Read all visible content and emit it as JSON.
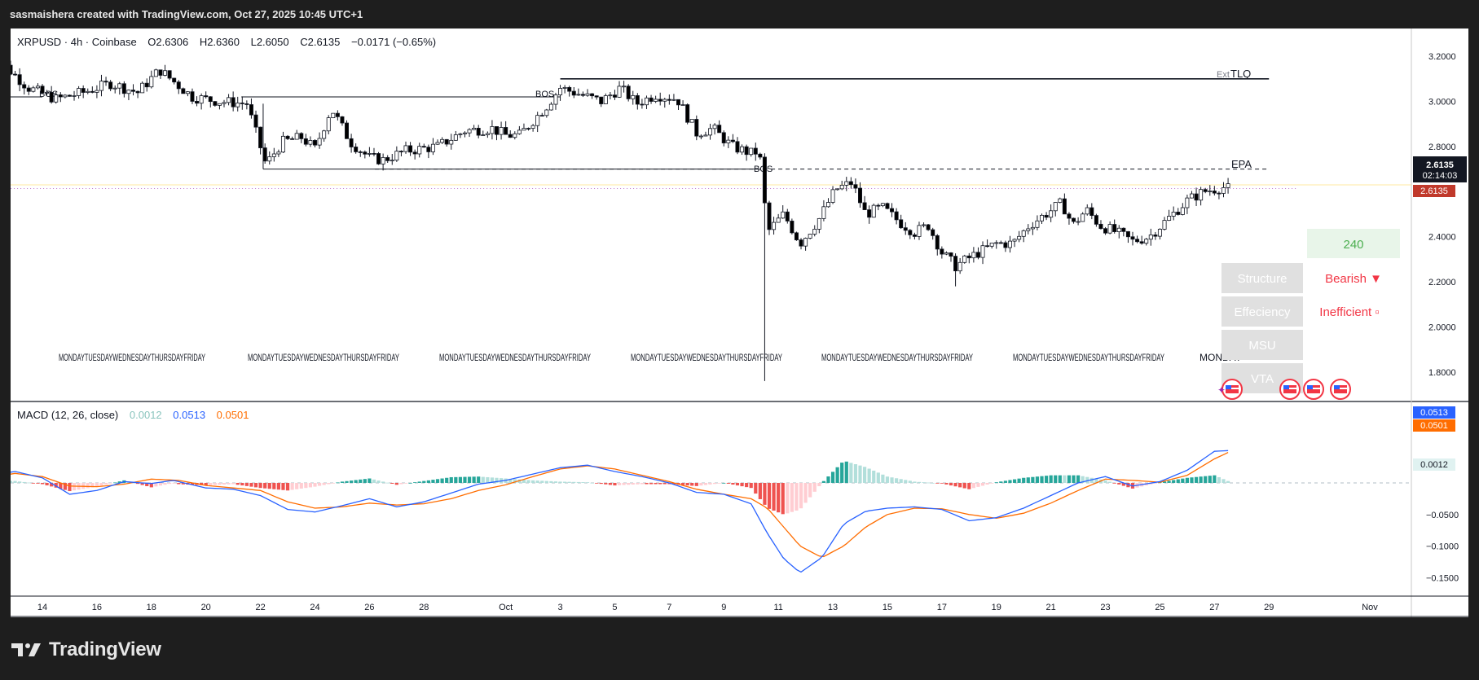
{
  "header": {
    "attribution": "sasmaishera created with TradingView.com, Oct 27, 2025 10:45 UTC+1"
  },
  "brand": {
    "name": "TradingView"
  },
  "colors": {
    "up": "#ffffff",
    "down": "#000000",
    "macd": "#2962ff",
    "signal": "#ff6d00",
    "hist_pos_strong": "#26a69a",
    "hist_pos_weak": "#b2dfdb",
    "hist_neg_strong": "#ef5350",
    "hist_neg_weak": "#ffcdd2",
    "bearish": "#f23645",
    "green": "#4caf50",
    "panel_bg": "#e0e0e0",
    "panel_text": "#ffffff"
  },
  "legend": {
    "symbol": "XRPUSD · 4h · Coinbase",
    "o_label": "O",
    "o_value": "2.6306",
    "h_label": "H",
    "h_value": "2.6360",
    "l_label": "L",
    "l_value": "2.6050",
    "c_label": "C",
    "c_value": "2.6135",
    "change": "−0.0171 (−0.65%)"
  },
  "macd_legend": {
    "title": "MACD (12, 26, close)",
    "hist": "0.0012",
    "macd": "0.0513",
    "signal": "0.0501"
  },
  "annotations": {
    "bos": "BOS",
    "tlq": "TLQ",
    "ext": "Ext",
    "epa": "EPA",
    "day_label": "MONDAYTUESDAYWEDNESDAYTHURSDAYFRIDAY",
    "monday": "MONDAY"
  },
  "table": {
    "counter": "240",
    "rows": [
      {
        "label": "Structure",
        "value": "Bearish ▼"
      },
      {
        "label": "Effeciency",
        "value": "Inefficient ▫"
      },
      {
        "label": "MSU",
        "value": ""
      },
      {
        "label": "VTA",
        "value": ""
      }
    ]
  },
  "price_tags": {
    "last": "2.6135",
    "countdown": "02:14:03",
    "close": "2.6135"
  },
  "macd_tags": {
    "macd": "0.0513",
    "signal": "0.0501",
    "hist": "0.0012"
  },
  "chart_data": [
    {
      "type": "candlestick",
      "symbol": "XRPUSD",
      "interval": "4h",
      "exchange": "Coinbase",
      "x_ticks": [
        "14",
        "16",
        "18",
        "20",
        "22",
        "24",
        "26",
        "28",
        "Oct",
        "3",
        "5",
        "7",
        "9",
        "11",
        "13",
        "15",
        "17",
        "19",
        "21",
        "23",
        "25",
        "27",
        "29",
        "Nov"
      ],
      "y_ticks": [
        "3.2000",
        "3.0000",
        "2.8000",
        "2.4000",
        "2.2000",
        "2.0000",
        "1.8000"
      ],
      "ylim": [
        1.72,
        3.28
      ],
      "close_path": [
        {
          "day": 12.0,
          "price": 3.05
        },
        {
          "day": 12.6,
          "price": 3.16
        },
        {
          "day": 13.5,
          "price": 3.06
        },
        {
          "day": 14.5,
          "price": 3.01
        },
        {
          "day": 15.5,
          "price": 3.04
        },
        {
          "day": 16.5,
          "price": 3.08
        },
        {
          "day": 17.5,
          "price": 3.04
        },
        {
          "day": 18.3,
          "price": 3.14
        },
        {
          "day": 19.5,
          "price": 3.02
        },
        {
          "day": 20.5,
          "price": 3.0
        },
        {
          "day": 21.5,
          "price": 2.99
        },
        {
          "day": 22.2,
          "price": 2.72
        },
        {
          "day": 22.8,
          "price": 2.82
        },
        {
          "day": 23.5,
          "price": 2.84
        },
        {
          "day": 24.0,
          "price": 2.79
        },
        {
          "day": 24.6,
          "price": 2.97
        },
        {
          "day": 25.3,
          "price": 2.82
        },
        {
          "day": 26.0,
          "price": 2.75
        },
        {
          "day": 26.5,
          "price": 2.74
        },
        {
          "day": 27.3,
          "price": 2.78
        },
        {
          "day": 28.5,
          "price": 2.8
        },
        {
          "day": 29.5,
          "price": 2.87
        },
        {
          "day": 30.5,
          "price": 2.88
        },
        {
          "day": 31.0,
          "price": 2.85
        },
        {
          "day": 31.5,
          "price": 2.85
        },
        {
          "day": 32.5,
          "price": 2.98
        },
        {
          "day": 33.0,
          "price": 3.06
        },
        {
          "day": 33.5,
          "price": 3.04
        },
        {
          "day": 34.5,
          "price": 3.0
        },
        {
          "day": 35.2,
          "price": 3.06
        },
        {
          "day": 35.8,
          "price": 2.99
        },
        {
          "day": 36.5,
          "price": 3.03
        },
        {
          "day": 37.3,
          "price": 3.01
        },
        {
          "day": 38.0,
          "price": 2.86
        },
        {
          "day": 38.6,
          "price": 2.88
        },
        {
          "day": 39.3,
          "price": 2.8
        },
        {
          "day": 40.0,
          "price": 2.77
        },
        {
          "day": 40.3,
          "price": 2.78
        },
        {
          "day": 40.6,
          "price": 2.42
        },
        {
          "day": 41.2,
          "price": 2.5
        },
        {
          "day": 41.8,
          "price": 2.37
        },
        {
          "day": 42.5,
          "price": 2.48
        },
        {
          "day": 43.1,
          "price": 2.61
        },
        {
          "day": 43.7,
          "price": 2.64
        },
        {
          "day": 44.2,
          "price": 2.5
        },
        {
          "day": 44.8,
          "price": 2.53
        },
        {
          "day": 45.5,
          "price": 2.46
        },
        {
          "day": 46.0,
          "price": 2.42
        },
        {
          "day": 46.5,
          "price": 2.45
        },
        {
          "day": 47.0,
          "price": 2.33
        },
        {
          "day": 47.5,
          "price": 2.27
        },
        {
          "day": 48.2,
          "price": 2.32
        },
        {
          "day": 49.0,
          "price": 2.37
        },
        {
          "day": 49.6,
          "price": 2.37
        },
        {
          "day": 50.2,
          "price": 2.45
        },
        {
          "day": 50.8,
          "price": 2.5
        },
        {
          "day": 51.4,
          "price": 2.55
        },
        {
          "day": 51.8,
          "price": 2.45
        },
        {
          "day": 52.3,
          "price": 2.52
        },
        {
          "day": 52.8,
          "price": 2.45
        },
        {
          "day": 53.4,
          "price": 2.42
        },
        {
          "day": 54.0,
          "price": 2.38
        },
        {
          "day": 54.6,
          "price": 2.4
        },
        {
          "day": 55.3,
          "price": 2.48
        },
        {
          "day": 56.0,
          "price": 2.56
        },
        {
          "day": 56.6,
          "price": 2.6
        },
        {
          "day": 57.3,
          "price": 2.62
        },
        {
          "day": 57.6,
          "price": 2.61
        }
      ],
      "levels": [
        {
          "name": "TLQ",
          "price": 3.1,
          "style": "solid",
          "from_day": 33.0,
          "to_day": 59.0
        },
        {
          "name": "BOS upper",
          "price": 3.02,
          "style": "solid",
          "from_day": 21.3,
          "to_day": 33.0
        },
        {
          "name": "BOS left",
          "price": 3.02,
          "style": "solid",
          "from_day": 12.0,
          "to_day": 14.0
        },
        {
          "name": "Range low",
          "price": 2.7,
          "style": "solid",
          "from_day": 22.1,
          "to_day": 40.3
        },
        {
          "name": "EPA",
          "price": 2.7,
          "style": "dashed",
          "from_day": 26.2,
          "to_day": 59.0
        },
        {
          "name": "Last price",
          "price": 2.6135,
          "style": "dotted",
          "from_day": 12.0,
          "to_day": 60.0
        }
      ]
    },
    {
      "type": "macd",
      "params": [
        12,
        26,
        "close"
      ],
      "y_ticks": [
        "−0.0500",
        "−0.1000",
        "−0.1500"
      ],
      "ylim": [
        -0.165,
        0.085
      ],
      "last": {
        "macd": 0.0513,
        "signal": 0.0501,
        "hist": 0.0012
      },
      "macd_path": [
        {
          "day": 12.0,
          "v": 0.012
        },
        {
          "day": 13.0,
          "v": 0.018
        },
        {
          "day": 14.0,
          "v": 0.008
        },
        {
          "day": 15.0,
          "v": -0.018
        },
        {
          "day": 16.0,
          "v": -0.012
        },
        {
          "day": 17.0,
          "v": 0.002
        },
        {
          "day": 18.0,
          "v": -0.001
        },
        {
          "day": 18.8,
          "v": 0.004
        },
        {
          "day": 20.0,
          "v": -0.008
        },
        {
          "day": 21.0,
          "v": -0.01
        },
        {
          "day": 22.0,
          "v": -0.02
        },
        {
          "day": 23.0,
          "v": -0.042
        },
        {
          "day": 24.0,
          "v": -0.046
        },
        {
          "day": 25.0,
          "v": -0.036
        },
        {
          "day": 26.0,
          "v": -0.025
        },
        {
          "day": 27.0,
          "v": -0.038
        },
        {
          "day": 28.0,
          "v": -0.03
        },
        {
          "day": 29.0,
          "v": -0.016
        },
        {
          "day": 30.0,
          "v": -0.002
        },
        {
          "day": 31.0,
          "v": 0.004
        },
        {
          "day": 32.0,
          "v": 0.014
        },
        {
          "day": 33.0,
          "v": 0.024
        },
        {
          "day": 34.0,
          "v": 0.028
        },
        {
          "day": 35.0,
          "v": 0.018
        },
        {
          "day": 36.0,
          "v": 0.01
        },
        {
          "day": 37.0,
          "v": 0.0
        },
        {
          "day": 38.0,
          "v": -0.015
        },
        {
          "day": 39.0,
          "v": -0.018
        },
        {
          "day": 40.0,
          "v": -0.033
        },
        {
          "day": 40.6,
          "v": -0.08
        },
        {
          "day": 41.2,
          "v": -0.12
        },
        {
          "day": 41.8,
          "v": -0.142
        },
        {
          "day": 42.6,
          "v": -0.118
        },
        {
          "day": 43.4,
          "v": -0.065
        },
        {
          "day": 44.2,
          "v": -0.045
        },
        {
          "day": 45.0,
          "v": -0.04
        },
        {
          "day": 46.0,
          "v": -0.038
        },
        {
          "day": 47.0,
          "v": -0.042
        },
        {
          "day": 48.0,
          "v": -0.06
        },
        {
          "day": 49.0,
          "v": -0.055
        },
        {
          "day": 50.0,
          "v": -0.04
        },
        {
          "day": 51.0,
          "v": -0.02
        },
        {
          "day": 52.0,
          "v": 0.0
        },
        {
          "day": 53.0,
          "v": 0.01
        },
        {
          "day": 54.0,
          "v": -0.005
        },
        {
          "day": 55.0,
          "v": 0.002
        },
        {
          "day": 56.0,
          "v": 0.02
        },
        {
          "day": 57.0,
          "v": 0.05
        },
        {
          "day": 57.6,
          "v": 0.0513
        }
      ],
      "signal_path": [
        {
          "day": 12.0,
          "v": 0.008
        },
        {
          "day": 13.0,
          "v": 0.015
        },
        {
          "day": 14.0,
          "v": 0.01
        },
        {
          "day": 15.0,
          "v": -0.005
        },
        {
          "day": 16.0,
          "v": -0.006
        },
        {
          "day": 17.0,
          "v": -0.002
        },
        {
          "day": 18.0,
          "v": 0.006
        },
        {
          "day": 19.0,
          "v": 0.004
        },
        {
          "day": 20.0,
          "v": -0.004
        },
        {
          "day": 21.0,
          "v": -0.008
        },
        {
          "day": 22.0,
          "v": -0.012
        },
        {
          "day": 23.0,
          "v": -0.03
        },
        {
          "day": 24.0,
          "v": -0.04
        },
        {
          "day": 25.0,
          "v": -0.038
        },
        {
          "day": 26.0,
          "v": -0.032
        },
        {
          "day": 27.0,
          "v": -0.035
        },
        {
          "day": 28.0,
          "v": -0.033
        },
        {
          "day": 29.0,
          "v": -0.025
        },
        {
          "day": 30.0,
          "v": -0.012
        },
        {
          "day": 31.0,
          "v": -0.003
        },
        {
          "day": 32.0,
          "v": 0.01
        },
        {
          "day": 33.0,
          "v": 0.022
        },
        {
          "day": 34.0,
          "v": 0.027
        },
        {
          "day": 35.0,
          "v": 0.022
        },
        {
          "day": 36.0,
          "v": 0.012
        },
        {
          "day": 37.0,
          "v": 0.002
        },
        {
          "day": 38.0,
          "v": -0.01
        },
        {
          "day": 39.0,
          "v": -0.018
        },
        {
          "day": 40.0,
          "v": -0.025
        },
        {
          "day": 40.6,
          "v": -0.04
        },
        {
          "day": 41.2,
          "v": -0.07
        },
        {
          "day": 41.8,
          "v": -0.1
        },
        {
          "day": 42.6,
          "v": -0.118
        },
        {
          "day": 43.4,
          "v": -0.1
        },
        {
          "day": 44.2,
          "v": -0.07
        },
        {
          "day": 45.0,
          "v": -0.05
        },
        {
          "day": 46.0,
          "v": -0.04
        },
        {
          "day": 47.0,
          "v": -0.041
        },
        {
          "day": 48.0,
          "v": -0.05
        },
        {
          "day": 49.0,
          "v": -0.056
        },
        {
          "day": 50.0,
          "v": -0.048
        },
        {
          "day": 51.0,
          "v": -0.032
        },
        {
          "day": 52.0,
          "v": -0.012
        },
        {
          "day": 53.0,
          "v": 0.006
        },
        {
          "day": 54.0,
          "v": 0.004
        },
        {
          "day": 55.0,
          "v": 0.001
        },
        {
          "day": 56.0,
          "v": 0.012
        },
        {
          "day": 57.0,
          "v": 0.038
        },
        {
          "day": 57.6,
          "v": 0.0501
        }
      ]
    }
  ]
}
